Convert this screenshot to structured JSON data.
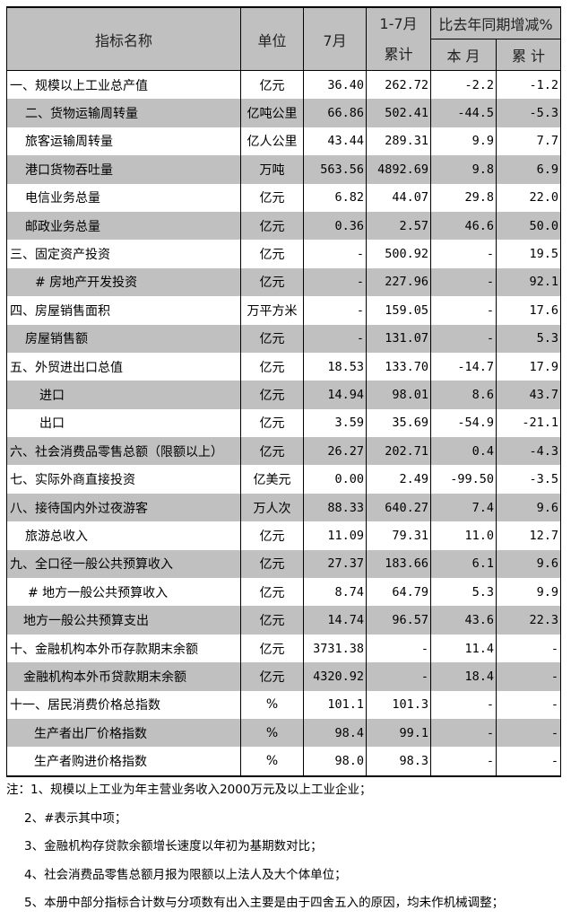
{
  "header": {
    "name": "指标名称",
    "unit": "单位",
    "month": "7月",
    "cum_top": "1-7月",
    "cum_bottom": "累计",
    "yoy": "比去年同期增减%",
    "yoy_month": "本 月",
    "yoy_cum": "累 计"
  },
  "rows": [
    {
      "name": "一、规模以上工业总产值",
      "unit": "亿元",
      "month": "36.40",
      "cum": "262.72",
      "yoy_month": "-2.2",
      "yoy_cum": "-1.2"
    },
    {
      "name": "二、货物运输周转量",
      "unit": "亿吨公里",
      "month": "66.86",
      "cum": "502.41",
      "yoy_month": "-44.5",
      "yoy_cum": "-5.3"
    },
    {
      "name": "旅客运输周转量",
      "unit": "亿人公里",
      "month": "43.44",
      "cum": "289.31",
      "yoy_month": "9.9",
      "yoy_cum": "7.7"
    },
    {
      "name": "港口货物吞吐量",
      "unit": "万吨",
      "month": "563.56",
      "cum": "4892.69",
      "yoy_month": "9.8",
      "yoy_cum": "6.9"
    },
    {
      "name": "电信业务总量",
      "unit": "亿元",
      "month": "6.82",
      "cum": "44.07",
      "yoy_month": "29.8",
      "yoy_cum": "22.0"
    },
    {
      "name": "邮政业务总量",
      "unit": "亿元",
      "month": "0.36",
      "cum": "2.57",
      "yoy_month": "46.6",
      "yoy_cum": "50.0"
    },
    {
      "name": "三、固定资产投资",
      "unit": "亿元",
      "month": "-",
      "cum": "500.92",
      "yoy_month": "-",
      "yoy_cum": "19.5"
    },
    {
      "name": "# 房地产开发投资",
      "unit": "亿元",
      "month": "-",
      "cum": "227.96",
      "yoy_month": "-",
      "yoy_cum": "92.1"
    },
    {
      "name": "四、房屋销售面积",
      "unit": "万平方米",
      "month": "-",
      "cum": "159.05",
      "yoy_month": "-",
      "yoy_cum": "17.6"
    },
    {
      "name": "房屋销售额",
      "unit": "亿元",
      "month": "-",
      "cum": "131.07",
      "yoy_month": "-",
      "yoy_cum": "5.3"
    },
    {
      "name": "五、外贸进出口总值",
      "unit": "亿元",
      "month": "18.53",
      "cum": "133.70",
      "yoy_month": "-14.7",
      "yoy_cum": "17.9"
    },
    {
      "name": "进口",
      "unit": "亿元",
      "month": "14.94",
      "cum": "98.01",
      "yoy_month": "8.6",
      "yoy_cum": "43.7"
    },
    {
      "name": "出口",
      "unit": "亿元",
      "month": "3.59",
      "cum": "35.69",
      "yoy_month": "-54.9",
      "yoy_cum": "-21.1"
    },
    {
      "name": "六、社会消费品零售总额（限额以上）",
      "unit": "亿元",
      "month": "26.27",
      "cum": "202.71",
      "yoy_month": "0.4",
      "yoy_cum": "-4.3"
    },
    {
      "name": "七、实际外商直接投资",
      "unit": "亿美元",
      "month": "0.00",
      "cum": "2.49",
      "yoy_month": "-99.50",
      "yoy_cum": "-3.5"
    },
    {
      "name": "八、接待国内外过夜游客",
      "unit": "万人次",
      "month": "88.33",
      "cum": "640.27",
      "yoy_month": "7.4",
      "yoy_cum": "9.6"
    },
    {
      "name": "旅游总收入",
      "unit": "亿元",
      "month": "11.09",
      "cum": "79.31",
      "yoy_month": "11.0",
      "yoy_cum": "12.7"
    },
    {
      "name": "九、全口径一般公共预算收入",
      "unit": "亿元",
      "month": "27.37",
      "cum": "183.66",
      "yoy_month": "6.1",
      "yoy_cum": "9.6"
    },
    {
      "name": "# 地方一般公共预算收入",
      "unit": "亿元",
      "month": "8.74",
      "cum": "64.79",
      "yoy_month": "5.3",
      "yoy_cum": "9.9"
    },
    {
      "name": "地方一般公共预算支出",
      "unit": "亿元",
      "month": "14.74",
      "cum": "96.57",
      "yoy_month": "43.6",
      "yoy_cum": "22.3"
    },
    {
      "name": "十、金融机构本外币存款期末余额",
      "unit": "亿元",
      "month": "3731.38",
      "cum": "-",
      "yoy_month": "11.4",
      "yoy_cum": "-"
    },
    {
      "name": "金融机构本外币贷款期末余额",
      "unit": "亿元",
      "month": "4320.92",
      "cum": "-",
      "yoy_month": "18.4",
      "yoy_cum": "-"
    },
    {
      "name": "十一、居民消费价格总指数",
      "unit": "%",
      "month": "101.1",
      "cum": "101.3",
      "yoy_month": "-",
      "yoy_cum": "-"
    },
    {
      "name": "生产者出厂价格指数",
      "unit": "%",
      "month": "98.4",
      "cum": "99.1",
      "yoy_month": "-",
      "yoy_cum": "-"
    },
    {
      "name": "生产者购进价格指数",
      "unit": "%",
      "month": "98.0",
      "cum": "98.3",
      "yoy_month": "-",
      "yoy_cum": "-"
    }
  ],
  "notes": [
    "注：1、规模以上工业为年主营业务收入2000万元及以上工业企业；",
    "2、#表示其中项；",
    "3、金融机构存贷款余额增长速度以年初为基期数对比；",
    "4、社会消费品零售总额月报为限额以上法人及大个体单位；",
    "5、本册中部分指标合计数与分项数有出入主要是由于四舍五入的原因，均未作机械调整；"
  ],
  "colors": {
    "shade": "#c0c0c0",
    "border": "#000000"
  }
}
